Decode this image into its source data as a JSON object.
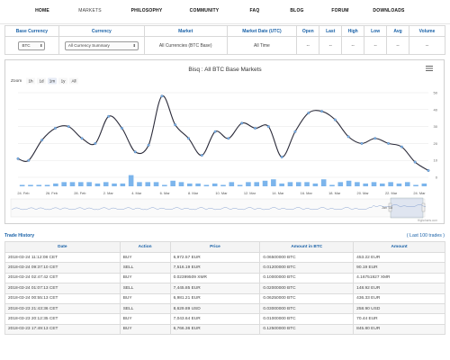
{
  "nav": [
    "HOME",
    "MARKETS",
    "PHILOSOPHY",
    "COMMUNITY",
    "FAQ",
    "BLOG",
    "FORUM",
    "DOWNLOADS"
  ],
  "selector": {
    "headers": [
      "Base Currency",
      "Currency",
      "Market",
      "Market Date (UTC)",
      "Open",
      "Last",
      "High",
      "Low",
      "Avg",
      "Volume"
    ],
    "base_currency": "BTC",
    "currency": "All Currency Summary",
    "market": "All Currencies (BTC Base)",
    "market_date": "All Time",
    "open": "--",
    "last": "--",
    "high": "--",
    "low": "--",
    "avg": "--",
    "volume": "--"
  },
  "chart": {
    "title": "Bisq : All BTC Base Markets",
    "zoom_label": "Zoom",
    "zoom_buttons": [
      "1h",
      "1d",
      "1m",
      "1y",
      "All"
    ],
    "navigator_label": "Jan '18",
    "credit": "Highcharts.com",
    "menu_icon": "hamburger-menu-icon"
  },
  "chart_data": {
    "type": "line",
    "title": "Bisq : All BTC Base Markets",
    "x_tick_labels": [
      "24. Feb",
      "26. Feb",
      "28. Feb",
      "2. Mar",
      "4. Mar",
      "6. Mar",
      "8. Mar",
      "10. Mar",
      "12. Mar",
      "14. Mar",
      "16. Mar",
      "18. Mar",
      "20. Mar",
      "22. Mar",
      "24. Mar"
    ],
    "y_tick_labels": [
      "0",
      "10",
      "20",
      "30",
      "40",
      "50"
    ],
    "ylim": [
      0,
      50
    ],
    "series": [
      {
        "x": [
          23.2,
          24,
          25,
          26,
          27,
          28,
          29,
          30,
          31,
          32,
          33,
          34,
          35,
          36,
          37,
          38,
          39,
          40,
          41,
          42,
          43,
          44,
          45,
          46,
          47,
          48,
          49,
          50,
          51,
          52,
          53,
          54
        ],
        "values": [
          11,
          10,
          22,
          29,
          30,
          23,
          20,
          36,
          29,
          15,
          19,
          48,
          31,
          23,
          13,
          27,
          23,
          32,
          29,
          30,
          12,
          27,
          38,
          39,
          34,
          24,
          20,
          23,
          20,
          18,
          9,
          4
        ]
      }
    ],
    "volume_bars": [
      1,
      1,
      1,
      1,
      2,
      3,
      3,
      3,
      3,
      2,
      3,
      2,
      2,
      8,
      3,
      3,
      3,
      1,
      4,
      3,
      2,
      2,
      1,
      2,
      1,
      3,
      1,
      3,
      3,
      4,
      5,
      2,
      3,
      3,
      3,
      2,
      5,
      1,
      3,
      4,
      3,
      2,
      3,
      2,
      3,
      2,
      3,
      1,
      2
    ],
    "colors": {
      "line": "#2b2b3a",
      "marker": "#7cb5ec",
      "bar": "#7cb5ec"
    }
  },
  "trade_history": {
    "title": "Trade History",
    "last_link": "( Last 100 trades )",
    "headers": [
      "Date",
      "Action",
      "Price",
      "Amount in BTC",
      "Amount"
    ],
    "rows": [
      [
        "2018-03-24 11:12:08 CET",
        "BUY",
        "6,972.57 EUR",
        "0.06500000 BTC",
        "453.22 EUR"
      ],
      [
        "2018-03-24 09:37:10 CET",
        "SELL",
        "7,516.19 EUR",
        "0.01200000 BTC",
        "90.19 EUR"
      ],
      [
        "2018-03-24 02:47:42 CET",
        "BUY",
        "0.02399509 XMR",
        "0.10000000 BTC",
        "4.16751927 XMR"
      ],
      [
        "2018-03-24 01:07:13 CET",
        "SELL",
        "7,445.85 EUR",
        "0.02000000 BTC",
        "148.92 EUR"
      ],
      [
        "2018-03-24 00:55:13 CET",
        "BUY",
        "6,981.21 EUR",
        "0.06250000 BTC",
        "436.33 EUR"
      ],
      [
        "2018-03-23 21:43:36 CET",
        "SELL",
        "8,629.89 USD",
        "0.03000000 BTC",
        "258.90 USD"
      ],
      [
        "2018-03-23 20:12:35 CET",
        "BUY",
        "7,043.64 EUR",
        "0.01000000 BTC",
        "70.44 EUR"
      ],
      [
        "2018-03-23 17:49:13 CET",
        "BUY",
        "6,766.36 EUR",
        "0.12500000 BTC",
        "845.80 EUR"
      ]
    ]
  }
}
